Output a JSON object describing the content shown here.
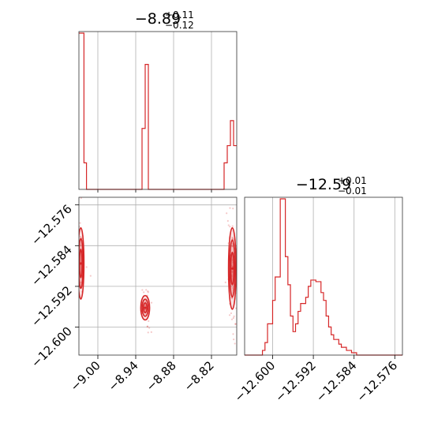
{
  "chart_data": {
    "type": "corner",
    "color": "#d62728",
    "parameters": [
      {
        "title": {
          "median": "−8.89",
          "plus": "+0.11",
          "minus": "−0.12"
        },
        "range": [
          -9.03,
          -8.78
        ],
        "ticks": [
          -9.0,
          -8.94,
          -8.88,
          -8.82
        ],
        "tick_labels": [
          "−9.00",
          "−8.94",
          "−8.88",
          "−8.82"
        ],
        "grid": true,
        "histogram": {
          "bins": [
            [
              -9.03,
              -9.022,
              1.0
            ],
            [
              -9.022,
              -9.018,
              0.17
            ],
            [
              -9.018,
              -8.93,
              0.0
            ],
            [
              -8.93,
              -8.925,
              0.39
            ],
            [
              -8.925,
              -8.92,
              0.8
            ],
            [
              -8.92,
              -8.8,
              0.0
            ],
            [
              -8.8,
              -8.795,
              0.17
            ],
            [
              -8.795,
              -8.79,
              0.28
            ],
            [
              -8.79,
              -8.785,
              0.44
            ],
            [
              -8.785,
              -8.78,
              0.28
            ]
          ]
        }
      },
      {
        "title": {
          "median": "−12.59",
          "plus": "+0.01",
          "minus": "−0.01"
        },
        "range": [
          -12.6055,
          -12.5745
        ],
        "ticks": [
          -12.6,
          -12.592,
          -12.584,
          -12.576
        ],
        "tick_labels": [
          "−12.600",
          "−12.592",
          "−12.584",
          "−12.576"
        ],
        "grid": true,
        "histogram": {
          "bins": [
            [
              -12.6055,
              -12.602,
              0.0
            ],
            [
              -12.602,
              -12.6015,
              0.03
            ],
            [
              -12.6015,
              -12.601,
              0.08
            ],
            [
              -12.601,
              -12.6,
              0.2
            ],
            [
              -12.6,
              -12.5995,
              0.35
            ],
            [
              -12.5995,
              -12.5985,
              0.5
            ],
            [
              -12.5985,
              -12.5975,
              1.0
            ],
            [
              -12.5975,
              -12.597,
              0.63
            ],
            [
              -12.597,
              -12.5965,
              0.45
            ],
            [
              -12.5965,
              -12.596,
              0.25
            ],
            [
              -12.596,
              -12.5955,
              0.15
            ],
            [
              -12.5955,
              -12.595,
              0.2
            ],
            [
              -12.595,
              -12.5945,
              0.28
            ],
            [
              -12.5945,
              -12.5935,
              0.33
            ],
            [
              -12.5935,
              -12.593,
              0.37
            ],
            [
              -12.593,
              -12.5925,
              0.44
            ],
            [
              -12.5925,
              -12.5915,
              0.48
            ],
            [
              -12.5915,
              -12.5905,
              0.47
            ],
            [
              -12.5905,
              -12.59,
              0.4
            ],
            [
              -12.59,
              -12.5895,
              0.35
            ],
            [
              -12.5895,
              -12.589,
              0.25
            ],
            [
              -12.589,
              -12.5885,
              0.18
            ],
            [
              -12.5885,
              -12.588,
              0.13
            ],
            [
              -12.588,
              -12.587,
              0.1
            ],
            [
              -12.587,
              -12.5865,
              0.07
            ],
            [
              -12.5865,
              -12.5855,
              0.05
            ],
            [
              -12.5855,
              -12.5845,
              0.03
            ],
            [
              -12.5845,
              -12.5835,
              0.015
            ],
            [
              -12.5835,
              -12.5745,
              0.0
            ]
          ]
        }
      }
    ],
    "joint": {
      "x_param": 0,
      "y_param": 1,
      "ylim": [
        -12.6055,
        -12.5745
      ],
      "y_ticks": [
        -12.6,
        -12.592,
        -12.584,
        -12.576
      ],
      "y_tick_labels": [
        "−12.600",
        "−12.592",
        "−12.584",
        "−12.576"
      ],
      "modes": [
        {
          "x": -9.027,
          "y": -12.5875,
          "sx": 0.0025,
          "sy": 0.0035
        },
        {
          "x": -8.925,
          "y": -12.5962,
          "sx": 0.0035,
          "sy": 0.0012
        },
        {
          "x": -8.787,
          "y": -12.5885,
          "sx": 0.003,
          "sy": 0.004
        }
      ]
    }
  }
}
